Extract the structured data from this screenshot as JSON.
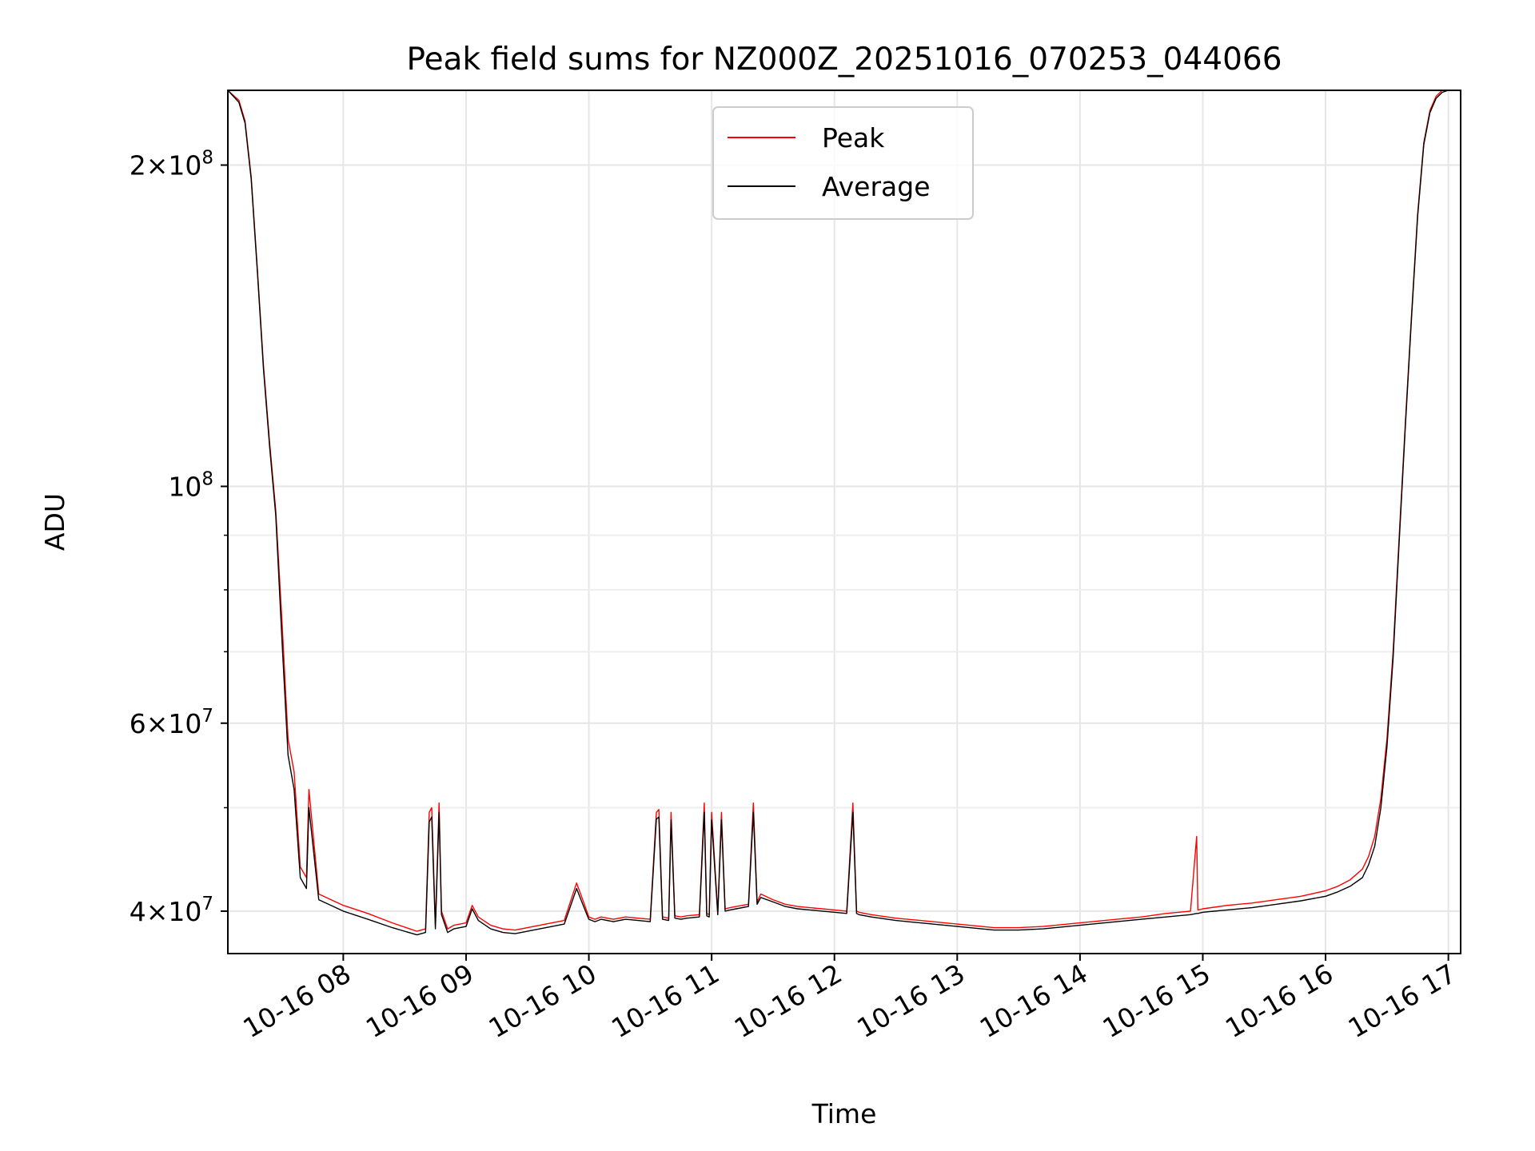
{
  "chart_data": {
    "type": "line",
    "title": "Peak field sums for NZ000Z_20251016_070253_044066",
    "xlabel": "Time",
    "ylabel": "ADU",
    "x_unit": "hours (10-16)",
    "xlim": [
      7.06,
      17.1
    ],
    "ylim": [
      36500000,
      235000000
    ],
    "yscale": "log",
    "grid": true,
    "legend_position": "upper center",
    "x_ticks": [
      {
        "value": 8,
        "label": "10-16 08"
      },
      {
        "value": 9,
        "label": "10-16 09"
      },
      {
        "value": 10,
        "label": "10-16 10"
      },
      {
        "value": 11,
        "label": "10-16 11"
      },
      {
        "value": 12,
        "label": "10-16 12"
      },
      {
        "value": 13,
        "label": "10-16 13"
      },
      {
        "value": 14,
        "label": "10-16 14"
      },
      {
        "value": 15,
        "label": "10-16 15"
      },
      {
        "value": 16,
        "label": "10-16 16"
      },
      {
        "value": 17,
        "label": "10-16 17"
      }
    ],
    "y_major_ticks": [
      {
        "value": 40000000,
        "mantissa": "4",
        "exp": "7"
      },
      {
        "value": 60000000,
        "mantissa": "6",
        "exp": "7"
      },
      {
        "value": 100000000,
        "mantissa": "",
        "exp": "8"
      },
      {
        "value": 200000000,
        "mantissa": "2",
        "exp": "8"
      }
    ],
    "y_minor_ticks": [
      50000000,
      70000000,
      80000000,
      90000000
    ],
    "series": [
      {
        "name": "Peak",
        "color": "#ff0000",
        "x": [
          7.06,
          7.15,
          7.2,
          7.25,
          7.3,
          7.35,
          7.4,
          7.45,
          7.5,
          7.55,
          7.6,
          7.65,
          7.7,
          7.72,
          7.8,
          8.0,
          8.2,
          8.4,
          8.6,
          8.67,
          8.7,
          8.72,
          8.75,
          8.78,
          8.8,
          8.85,
          8.9,
          9.0,
          9.05,
          9.1,
          9.2,
          9.3,
          9.4,
          9.5,
          9.6,
          9.7,
          9.8,
          9.9,
          9.95,
          10.0,
          10.05,
          10.1,
          10.2,
          10.3,
          10.4,
          10.5,
          10.55,
          10.57,
          10.6,
          10.65,
          10.67,
          10.7,
          10.75,
          10.8,
          10.9,
          10.94,
          10.96,
          10.98,
          11.0,
          11.05,
          11.08,
          11.11,
          11.15,
          11.2,
          11.3,
          11.34,
          11.37,
          11.4,
          11.5,
          11.6,
          11.7,
          11.8,
          11.9,
          12.0,
          12.1,
          12.15,
          12.18,
          12.2,
          12.3,
          12.5,
          12.7,
          12.9,
          13.1,
          13.3,
          13.5,
          13.7,
          13.9,
          14.1,
          14.3,
          14.5,
          14.7,
          14.9,
          14.95,
          14.96,
          15.0,
          15.2,
          15.4,
          15.6,
          15.8,
          16.0,
          16.1,
          16.2,
          16.3,
          16.35,
          16.4,
          16.45,
          16.5,
          16.55,
          16.6,
          16.65,
          16.7,
          16.75,
          16.8,
          16.85,
          16.9,
          16.95,
          17.0,
          17.04
        ],
        "y": [
          235000000,
          230000000,
          220000000,
          195000000,
          160000000,
          130000000,
          110000000,
          95000000,
          75000000,
          58000000,
          54000000,
          44000000,
          43000000,
          52000000,
          41500000,
          40500000,
          39800000,
          39000000,
          38300000,
          38500000,
          49500000,
          50000000,
          38800000,
          50500000,
          40000000,
          38500000,
          38800000,
          39000000,
          40500000,
          39500000,
          38800000,
          38500000,
          38400000,
          38600000,
          38800000,
          39000000,
          39200000,
          42500000,
          41000000,
          39500000,
          39300000,
          39500000,
          39300000,
          39500000,
          39400000,
          39300000,
          49500000,
          49800000,
          39500000,
          39400000,
          49500000,
          39600000,
          39500000,
          39600000,
          39700000,
          50500000,
          39800000,
          39700000,
          49500000,
          39900000,
          49500000,
          40200000,
          40300000,
          40400000,
          40600000,
          50500000,
          40800000,
          41500000,
          41000000,
          40600000,
          40400000,
          40300000,
          40200000,
          40100000,
          40000000,
          50500000,
          40000000,
          39900000,
          39700000,
          39400000,
          39200000,
          39000000,
          38800000,
          38600000,
          38600000,
          38700000,
          38900000,
          39100000,
          39300000,
          39500000,
          39800000,
          40000000,
          47000000,
          40100000,
          40200000,
          40500000,
          40700000,
          41000000,
          41300000,
          41800000,
          42200000,
          42800000,
          43800000,
          45000000,
          47000000,
          51000000,
          58000000,
          70000000,
          90000000,
          115000000,
          145000000,
          180000000,
          210000000,
          225000000,
          232000000,
          235000000,
          235000000,
          235000000
        ]
      },
      {
        "name": "Average",
        "color": "#000000",
        "x": [
          7.06,
          7.15,
          7.2,
          7.25,
          7.3,
          7.35,
          7.4,
          7.45,
          7.5,
          7.55,
          7.6,
          7.65,
          7.7,
          7.72,
          7.8,
          8.0,
          8.2,
          8.4,
          8.6,
          8.67,
          8.7,
          8.72,
          8.75,
          8.78,
          8.8,
          8.85,
          8.9,
          9.0,
          9.05,
          9.1,
          9.2,
          9.3,
          9.4,
          9.5,
          9.6,
          9.7,
          9.8,
          9.9,
          9.95,
          10.0,
          10.05,
          10.1,
          10.2,
          10.3,
          10.4,
          10.5,
          10.55,
          10.57,
          10.6,
          10.65,
          10.67,
          10.7,
          10.75,
          10.8,
          10.9,
          10.94,
          10.96,
          10.98,
          11.0,
          11.05,
          11.08,
          11.11,
          11.15,
          11.2,
          11.3,
          11.34,
          11.37,
          11.4,
          11.5,
          11.6,
          11.7,
          11.8,
          11.9,
          12.0,
          12.1,
          12.15,
          12.18,
          12.2,
          12.3,
          12.5,
          12.7,
          12.9,
          13.1,
          13.3,
          13.5,
          13.7,
          13.9,
          14.1,
          14.3,
          14.5,
          14.7,
          14.9,
          14.95,
          14.96,
          15.0,
          15.2,
          15.4,
          15.6,
          15.8,
          16.0,
          16.1,
          16.2,
          16.3,
          16.35,
          16.4,
          16.45,
          16.5,
          16.55,
          16.6,
          16.65,
          16.7,
          16.75,
          16.8,
          16.85,
          16.9,
          16.95,
          17.0,
          17.04
        ],
        "y": [
          235000000,
          229000000,
          219000000,
          194000000,
          159000000,
          129000000,
          109000000,
          94000000,
          72000000,
          56000000,
          52000000,
          43000000,
          42000000,
          50000000,
          41000000,
          40000000,
          39300000,
          38600000,
          38000000,
          38200000,
          48500000,
          49000000,
          38500000,
          49500000,
          39700000,
          38200000,
          38500000,
          38700000,
          40200000,
          39200000,
          38500000,
          38200000,
          38100000,
          38300000,
          38500000,
          38700000,
          38900000,
          42000000,
          40600000,
          39300000,
          39100000,
          39300000,
          39100000,
          39300000,
          39200000,
          39100000,
          48800000,
          49000000,
          39300000,
          39200000,
          48700000,
          39400000,
          39300000,
          39400000,
          39500000,
          49500000,
          39600000,
          39500000,
          48700000,
          39700000,
          48700000,
          40000000,
          40100000,
          40200000,
          40400000,
          49500000,
          40600000,
          41200000,
          40800000,
          40400000,
          40200000,
          40100000,
          40000000,
          39900000,
          39800000,
          49500000,
          39800000,
          39700000,
          39500000,
          39200000,
          39000000,
          38800000,
          38600000,
          38400000,
          38400000,
          38500000,
          38700000,
          38900000,
          39100000,
          39300000,
          39500000,
          39700000,
          39800000,
          39800000,
          39900000,
          40100000,
          40300000,
          40600000,
          40900000,
          41300000,
          41700000,
          42200000,
          43000000,
          44200000,
          46000000,
          50000000,
          57000000,
          69000000,
          89000000,
          114000000,
          144000000,
          179000000,
          209000000,
          224000000,
          231000000,
          234000000,
          235000000,
          235000000
        ]
      }
    ]
  }
}
